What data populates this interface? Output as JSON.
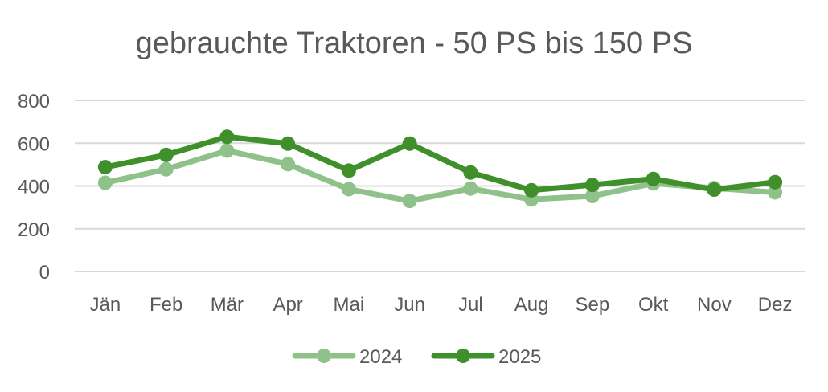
{
  "chart_data": {
    "type": "line",
    "title": "gebrauchte Traktoren - 50 PS bis 150 PS",
    "categories": [
      "Jän",
      "Feb",
      "Mär",
      "Apr",
      "Mai",
      "Jun",
      "Jul",
      "Aug",
      "Sep",
      "Okt",
      "Nov",
      "Dez"
    ],
    "y_ticks": [
      "0",
      "200",
      "400",
      "600",
      "800"
    ],
    "ylim": [
      0,
      800
    ],
    "grid": true,
    "legend_position": "bottom",
    "series": [
      {
        "name": "2024",
        "color": "#8fc28a",
        "values": [
          415,
          478,
          565,
          502,
          385,
          330,
          388,
          337,
          353,
          412,
          390,
          370
        ]
      },
      {
        "name": "2025",
        "color": "#3f8f2b",
        "values": [
          488,
          545,
          630,
          598,
          472,
          598,
          463,
          380,
          405,
          433,
          383,
          418
        ]
      }
    ]
  }
}
